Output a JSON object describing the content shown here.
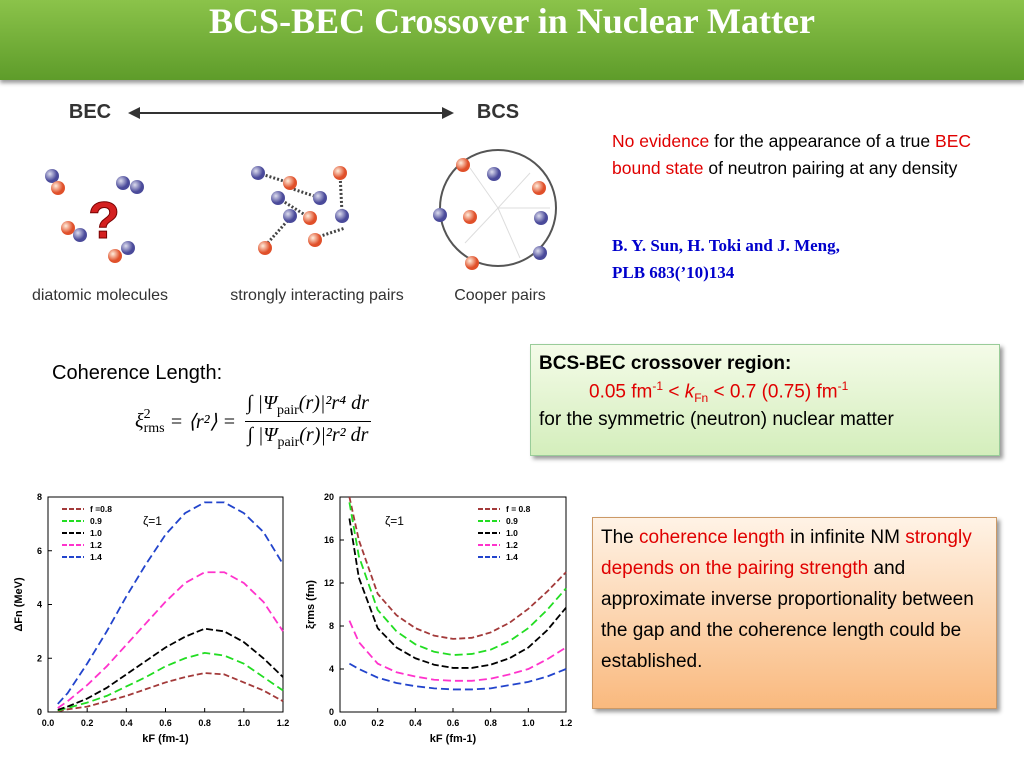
{
  "title": "BCS-BEC Crossover in Nuclear Matter",
  "diagram": {
    "left": "BEC",
    "right": "BCS",
    "question": "?",
    "captions": [
      "diatomic molecules",
      "strongly interacting pairs",
      "Cooper pairs"
    ]
  },
  "note": {
    "parts": [
      {
        "text": "No evidence",
        "color": "#e00000"
      },
      {
        "text": " for the appearance of a true ",
        "color": "#000000"
      },
      {
        "text": "BEC bound state",
        "color": "#e00000"
      },
      {
        "text": " of neutron pairing at any density",
        "color": "#000000"
      }
    ],
    "reference": [
      "B. Y. Sun, H. Toki and J. Meng,",
      "PLB 683(’10)134"
    ]
  },
  "coherence_label": "Coherence Length:",
  "formula": {
    "lhs": [
      "ξ",
      "2",
      "rms",
      " = ⟨r²⟩ = "
    ],
    "num": [
      "∫ |Ψ",
      "pair",
      "(r)|²r⁴ dr"
    ],
    "den": [
      "∫ |Ψ",
      "pair",
      "(r)|²r² dr"
    ]
  },
  "crossover_box": {
    "heading": "BCS-BEC crossover region:",
    "range": [
      "0.05 fm",
      "-1",
      " < ",
      "k",
      "Fn",
      " < 0.7 (0.75) fm",
      "-1"
    ],
    "footer": "for the symmetric (neutron) nuclear matter"
  },
  "conclusion": [
    {
      "text": "The ",
      "color": "#000000"
    },
    {
      "text": "coherence length",
      "color": "#e00000"
    },
    {
      "text": " in infinite NM ",
      "color": "#000000"
    },
    {
      "text": "strongly depends on the pairing strength",
      "color": "#e00000"
    },
    {
      "text": " and approximate inverse proportionality between the gap and the coherence length could be established.",
      "color": "#000000"
    }
  ],
  "chart_data": [
    {
      "type": "line",
      "x_label": "kF (fm-1)",
      "y_label": "ΔFn (MeV)",
      "annotation": "ζ=1",
      "legend": "upper left",
      "x": [
        0.05,
        0.1,
        0.2,
        0.3,
        0.4,
        0.5,
        0.6,
        0.7,
        0.8,
        0.9,
        1.0,
        1.1,
        1.2
      ],
      "xlim": [
        0,
        1.2
      ],
      "xticks": [
        {
          "value": 0,
          "label": "0.0"
        },
        0.2,
        0.4,
        0.6,
        0.8,
        {
          "value": 1,
          "label": "1.0"
        },
        1.2
      ],
      "ylim": [
        0,
        8
      ],
      "yticks": [
        0,
        2,
        4,
        6,
        8
      ],
      "series": [
        {
          "name": "f =0.8",
          "color": "#a33a3a",
          "values": [
            0.03,
            0.1,
            0.2,
            0.4,
            0.6,
            0.85,
            1.1,
            1.3,
            1.45,
            1.4,
            1.1,
            0.8,
            0.4
          ]
        },
        {
          "name": "0.9",
          "color": "#22dd22",
          "values": [
            0.05,
            0.15,
            0.35,
            0.6,
            0.95,
            1.3,
            1.7,
            2.0,
            2.2,
            2.1,
            1.8,
            1.3,
            0.8
          ]
        },
        {
          "name": "1.0",
          "color": "#000000",
          "values": [
            0.08,
            0.2,
            0.5,
            0.9,
            1.4,
            1.9,
            2.4,
            2.8,
            3.1,
            3.0,
            2.6,
            2.0,
            1.3
          ]
        },
        {
          "name": "1.2",
          "color": "#ff33cc",
          "values": [
            0.15,
            0.4,
            1.0,
            1.7,
            2.5,
            3.3,
            4.1,
            4.8,
            5.2,
            5.2,
            4.8,
            4.1,
            3.0
          ]
        },
        {
          "name": "1.4",
          "color": "#2244cc",
          "values": [
            0.3,
            0.7,
            1.8,
            3.0,
            4.3,
            5.5,
            6.6,
            7.4,
            7.8,
            7.8,
            7.4,
            6.7,
            5.5
          ]
        }
      ]
    },
    {
      "type": "line",
      "x_label": "kF (fm-1)",
      "y_label": "ξrms (fm)",
      "annotation": "ζ=1",
      "legend": "upper right",
      "x": [
        0.05,
        0.1,
        0.2,
        0.3,
        0.4,
        0.5,
        0.6,
        0.7,
        0.8,
        0.9,
        1.0,
        1.1,
        1.2
      ],
      "xlim": [
        0,
        1.2
      ],
      "xticks": [
        {
          "value": 0,
          "label": "0.0"
        },
        0.2,
        0.4,
        0.6,
        0.8,
        {
          "value": 1,
          "label": "1.0"
        },
        1.2
      ],
      "ylim": [
        0,
        20
      ],
      "yticks": [
        0,
        4,
        8,
        12,
        16,
        20
      ],
      "series": [
        {
          "name": "f = 0.8",
          "color": "#a33a3a",
          "values": [
            20,
            16,
            11,
            9,
            7.8,
            7.1,
            6.8,
            6.9,
            7.4,
            8.3,
            9.6,
            11.2,
            13
          ]
        },
        {
          "name": "0.9",
          "color": "#22dd22",
          "values": [
            19.5,
            14.5,
            9.5,
            7.5,
            6.3,
            5.6,
            5.3,
            5.4,
            5.8,
            6.6,
            7.8,
            9.5,
            11.5
          ]
        },
        {
          "name": "1.0",
          "color": "#000000",
          "values": [
            18,
            12.5,
            7.8,
            6,
            5,
            4.4,
            4.1,
            4.1,
            4.4,
            5,
            6,
            7.6,
            9.7
          ]
        },
        {
          "name": "1.2",
          "color": "#ff33cc",
          "values": [
            8.5,
            6.5,
            4.5,
            3.7,
            3.3,
            3,
            2.9,
            2.9,
            3.1,
            3.5,
            4,
            4.9,
            6
          ]
        },
        {
          "name": "1.4",
          "color": "#2244cc",
          "values": [
            4.5,
            4,
            3.2,
            2.7,
            2.4,
            2.2,
            2.1,
            2.1,
            2.2,
            2.5,
            2.8,
            3.3,
            4
          ]
        }
      ]
    }
  ]
}
